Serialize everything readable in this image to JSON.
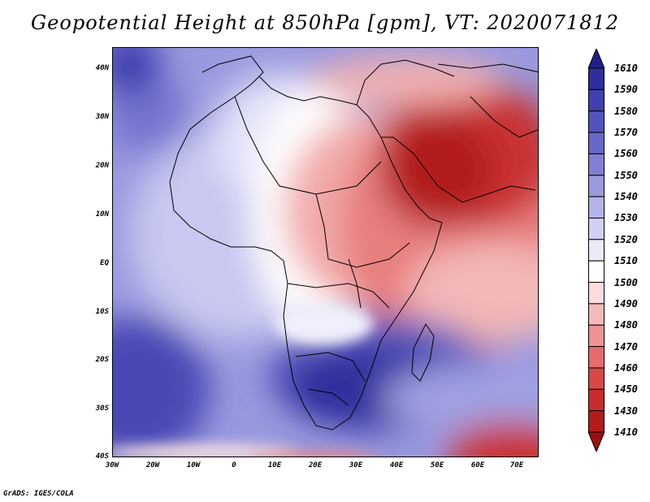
{
  "title": "Geopotential Height at 850hPa [gpm], VT: 2020071812",
  "footer": "GrADS: IGES/COLA",
  "map": {
    "region": "Africa and Middle East",
    "lat_labels": [
      "40N",
      "30N",
      "20N",
      "10N",
      "EQ",
      "10S",
      "20S",
      "30S",
      "40S"
    ],
    "lon_labels": [
      "30W",
      "20W",
      "10W",
      "0",
      "10E",
      "20E",
      "30E",
      "40E",
      "50E",
      "60E",
      "70E"
    ]
  },
  "colorbar": {
    "levels": [
      "1610",
      "1590",
      "1580",
      "1570",
      "1560",
      "1550",
      "1540",
      "1530",
      "1520",
      "1510",
      "1500",
      "1490",
      "1480",
      "1470",
      "1460",
      "1450",
      "1430",
      "1410"
    ],
    "colors": [
      "#1f1f8c",
      "#2e2e9e",
      "#4040b0",
      "#5353bd",
      "#6868c9",
      "#8080d4",
      "#9999df",
      "#b3b3ea",
      "#d0d0f3",
      "#eaeafa",
      "#ffffff",
      "#fbdcdc",
      "#f5b9b9",
      "#ee9393",
      "#e66c6c",
      "#d94747",
      "#c92c2c",
      "#b31b1b",
      "#9c1010"
    ]
  },
  "colors": {
    "low_red": "#b01818",
    "high_blue": "#2828a0",
    "coast": "#000000"
  }
}
